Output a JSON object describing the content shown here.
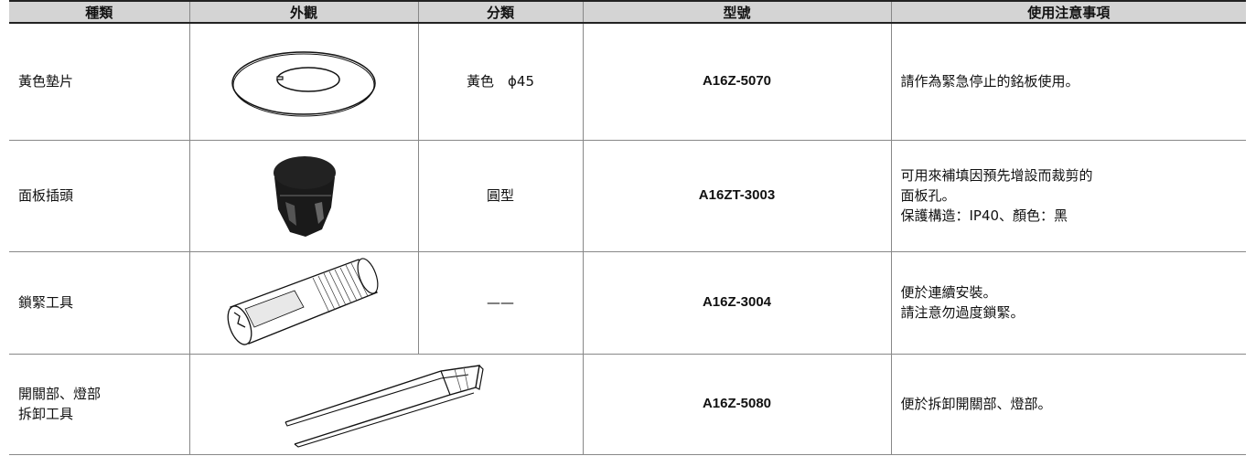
{
  "table": {
    "header": [
      "種類",
      "外觀",
      "分類",
      "型號",
      "使用注意事項"
    ],
    "rows": [
      {
        "name": [
          "黃色墊片"
        ],
        "category": "黃色　ϕ45",
        "model": "A16Z-5070",
        "notes": [
          "請作為緊急停止的銘板使用。"
        ]
      },
      {
        "name": [
          "面板插頭"
        ],
        "category": "圓型",
        "model": "A16ZT-3003",
        "notes": [
          "可用來補填因預先增設而裁剪的",
          "面板孔。",
          "保護構造：IP40、顏色：黑"
        ]
      },
      {
        "name": [
          "鎖緊工具"
        ],
        "category": "——",
        "model": "A16Z-3004",
        "notes": [
          "便於連續安裝。",
          "請注意勿過度鎖緊。"
        ]
      },
      {
        "name": [
          "開關部、燈部",
          "拆卸工具"
        ],
        "model": "A16Z-5080",
        "notes": [
          "便於拆卸開關部、燈部。"
        ]
      }
    ]
  }
}
